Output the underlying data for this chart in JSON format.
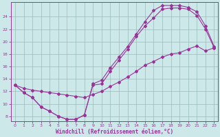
{
  "xlabel": "Windchill (Refroidissement éolien,°C)",
  "bg_color": "#cce8e8",
  "line_color": "#993399",
  "grid_color": "#99bbbb",
  "xlim_min": -0.5,
  "xlim_max": 23.4,
  "ylim_min": 7.2,
  "ylim_max": 26.3,
  "xticks": [
    0,
    1,
    2,
    3,
    4,
    5,
    6,
    7,
    8,
    9,
    10,
    11,
    12,
    13,
    14,
    15,
    16,
    17,
    18,
    19,
    20,
    21,
    22,
    23
  ],
  "yticks": [
    8,
    10,
    12,
    14,
    16,
    18,
    20,
    22,
    24
  ],
  "curve1_x": [
    0,
    1,
    2,
    3,
    4,
    5,
    6,
    7,
    8,
    9,
    10,
    11,
    12,
    13,
    14,
    15,
    16,
    17,
    18,
    19,
    20,
    21,
    22,
    23
  ],
  "curve1_y": [
    13.0,
    11.8,
    11.0,
    9.5,
    8.8,
    8.0,
    7.5,
    7.5,
    8.2,
    13.0,
    13.2,
    15.2,
    17.0,
    18.8,
    20.8,
    22.5,
    23.8,
    25.2,
    25.4,
    25.4,
    25.2,
    24.2,
    22.0,
    19.0
  ],
  "curve2_x": [
    0,
    1,
    2,
    3,
    4,
    5,
    6,
    7,
    8,
    9,
    10,
    11,
    12,
    13,
    14,
    15,
    16,
    17,
    18,
    19,
    20,
    21,
    22,
    23
  ],
  "curve2_y": [
    13.0,
    11.8,
    11.0,
    9.5,
    8.8,
    8.0,
    7.5,
    7.5,
    8.2,
    13.2,
    13.8,
    15.8,
    17.5,
    19.2,
    21.2,
    23.2,
    25.0,
    25.8,
    25.8,
    25.8,
    25.5,
    24.8,
    22.5,
    19.2
  ],
  "line3_x": [
    0,
    1,
    2,
    3,
    4,
    5,
    6,
    7,
    8,
    9,
    10,
    11,
    12,
    13,
    14,
    15,
    16,
    17,
    18,
    19,
    20,
    21,
    22,
    23
  ],
  "line3_y": [
    13.0,
    12.5,
    12.2,
    12.0,
    11.8,
    11.6,
    11.4,
    11.2,
    11.0,
    11.5,
    12.0,
    12.8,
    13.5,
    14.3,
    15.2,
    16.2,
    16.8,
    17.5,
    18.0,
    18.2,
    18.8,
    19.3,
    18.5,
    19.0
  ]
}
